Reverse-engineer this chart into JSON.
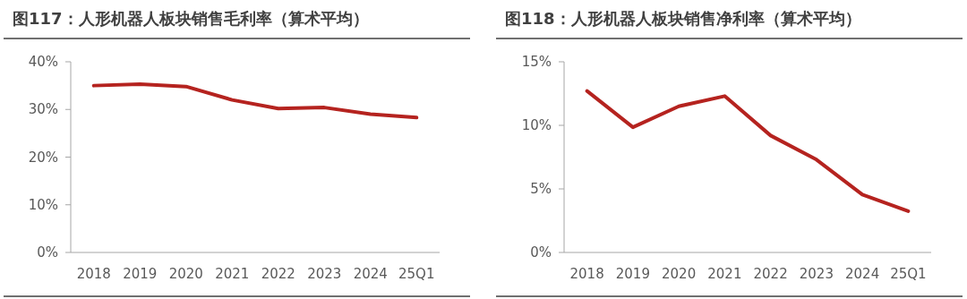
{
  "chart_data": [
    {
      "type": "line",
      "title": "图117：人形机器人板块销售毛利率（算术平均）",
      "categories": [
        "2018",
        "2019",
        "2020",
        "2021",
        "2022",
        "2023",
        "2024",
        "25Q1"
      ],
      "series": [
        {
          "color": "#b5231f",
          "values": [
            35.0,
            35.3,
            34.8,
            32.0,
            30.2,
            30.4,
            29.0,
            28.3
          ]
        }
      ],
      "ylim": [
        0,
        40
      ],
      "yticks": [
        {
          "value": 0,
          "label": "0%"
        },
        {
          "value": 10,
          "label": "10%"
        },
        {
          "value": 20,
          "label": "20%"
        },
        {
          "value": 30,
          "label": "30%"
        },
        {
          "value": 40,
          "label": "40%"
        }
      ],
      "grid": false,
      "marker": "none",
      "line_style": "solid"
    },
    {
      "type": "line",
      "title": "图118：人形机器人板块销售净利率（算术平均）",
      "categories": [
        "2018",
        "2019",
        "2020",
        "2021",
        "2022",
        "2023",
        "2024",
        "25Q1"
      ],
      "series": [
        {
          "color": "#b5231f",
          "values": [
            12.7,
            9.85,
            11.5,
            12.3,
            9.2,
            7.3,
            4.55,
            3.25
          ]
        }
      ],
      "ylim": [
        0,
        15
      ],
      "yticks": [
        {
          "value": 0,
          "label": "0%"
        },
        {
          "value": 5,
          "label": "5%"
        },
        {
          "value": 10,
          "label": "10%"
        },
        {
          "value": 15,
          "label": "15%"
        }
      ],
      "grid": false,
      "marker": "none",
      "line_style": "solid"
    }
  ]
}
